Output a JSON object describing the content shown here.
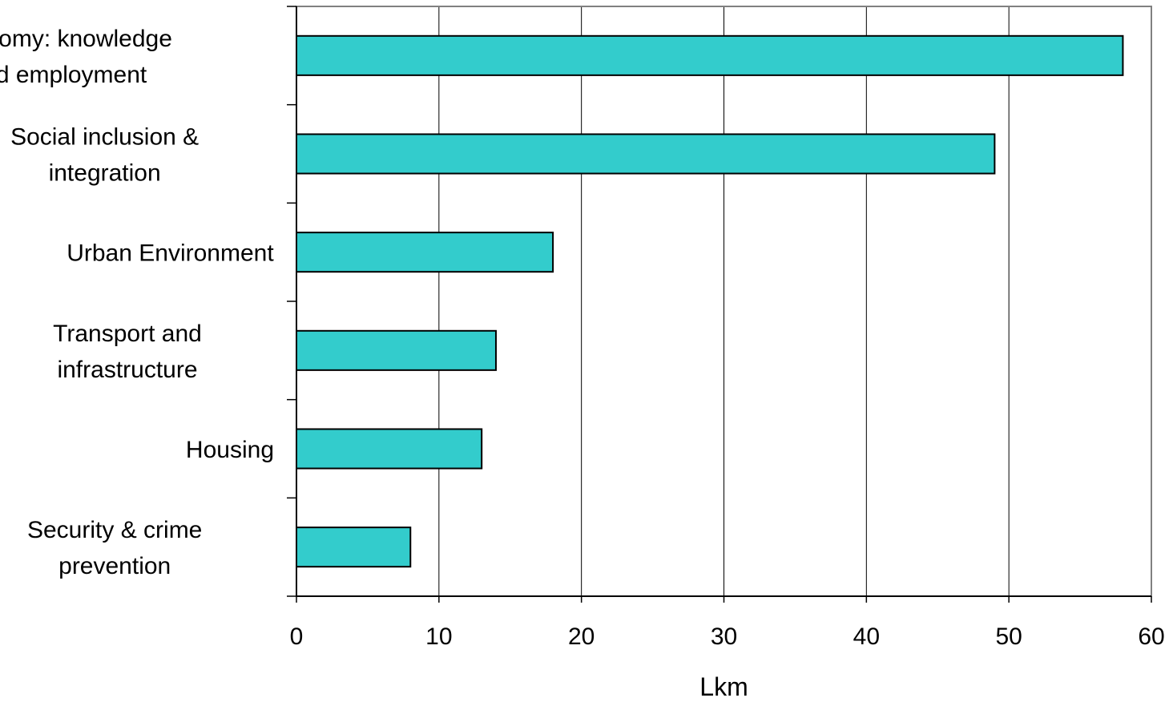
{
  "chart_data": {
    "type": "bar",
    "orientation": "horizontal",
    "title": "",
    "xlabel": "Lkm",
    "ylabel": "",
    "categories": [
      [
        "Economy: knowledge",
        "and employment"
      ],
      [
        "Social inclusion &",
        "integration"
      ],
      [
        "Urban Environment"
      ],
      [
        "Transport and",
        "infrastructure"
      ],
      [
        "Housing"
      ],
      [
        "Security & crime",
        "prevention"
      ]
    ],
    "values": [
      58,
      49,
      18,
      14,
      13,
      8
    ],
    "xlim": [
      0,
      60
    ],
    "xticks": [
      "0",
      "10",
      "20",
      "30",
      "40",
      "50",
      "60"
    ],
    "grid": "vertical",
    "legend": "none",
    "colors": {
      "bar_fill": "#33CCCC",
      "bar_stroke": "#000000",
      "grid": "#000000",
      "axis": "#000000",
      "plot_border": "#808080"
    }
  }
}
